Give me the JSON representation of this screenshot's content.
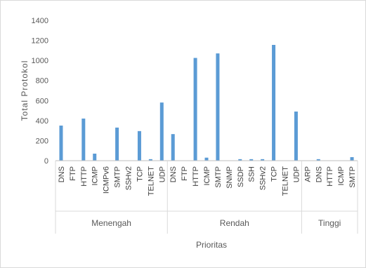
{
  "chart_data": {
    "type": "bar",
    "title": "",
    "xlabel": "Prioritas",
    "ylabel": "Total Protokol",
    "ylim": [
      0,
      1400
    ],
    "yticks": [
      0,
      200,
      400,
      600,
      800,
      1000,
      1200,
      1400
    ],
    "grid": false,
    "legend": "none",
    "bar_color": "#5b9bd5",
    "groups": [
      {
        "name": "Menengah",
        "categories": [
          "DNS",
          "FTP",
          "HTTP",
          "ICMP",
          "ICMPv6",
          "SMTP",
          "SSHv2",
          "TCP",
          "TELNET",
          "UDP"
        ],
        "values": [
          350,
          0,
          420,
          70,
          0,
          330,
          0,
          295,
          15,
          580
        ]
      },
      {
        "name": "Rendah",
        "categories": [
          "DNS",
          "FTP",
          "HTTP",
          "ICMP",
          "SMTP",
          "SNMP",
          "SSDP",
          "SSH",
          "SSHv2",
          "TCP",
          "TELNET",
          "UDP"
        ],
        "values": [
          265,
          0,
          1025,
          30,
          1070,
          0,
          15,
          15,
          15,
          1155,
          0,
          490
        ]
      },
      {
        "name": "Tinggi",
        "categories": [
          "ARP",
          "DNS",
          "HTTP",
          "ICMP",
          "SMTP"
        ],
        "values": [
          0,
          15,
          0,
          0,
          35
        ]
      }
    ]
  }
}
